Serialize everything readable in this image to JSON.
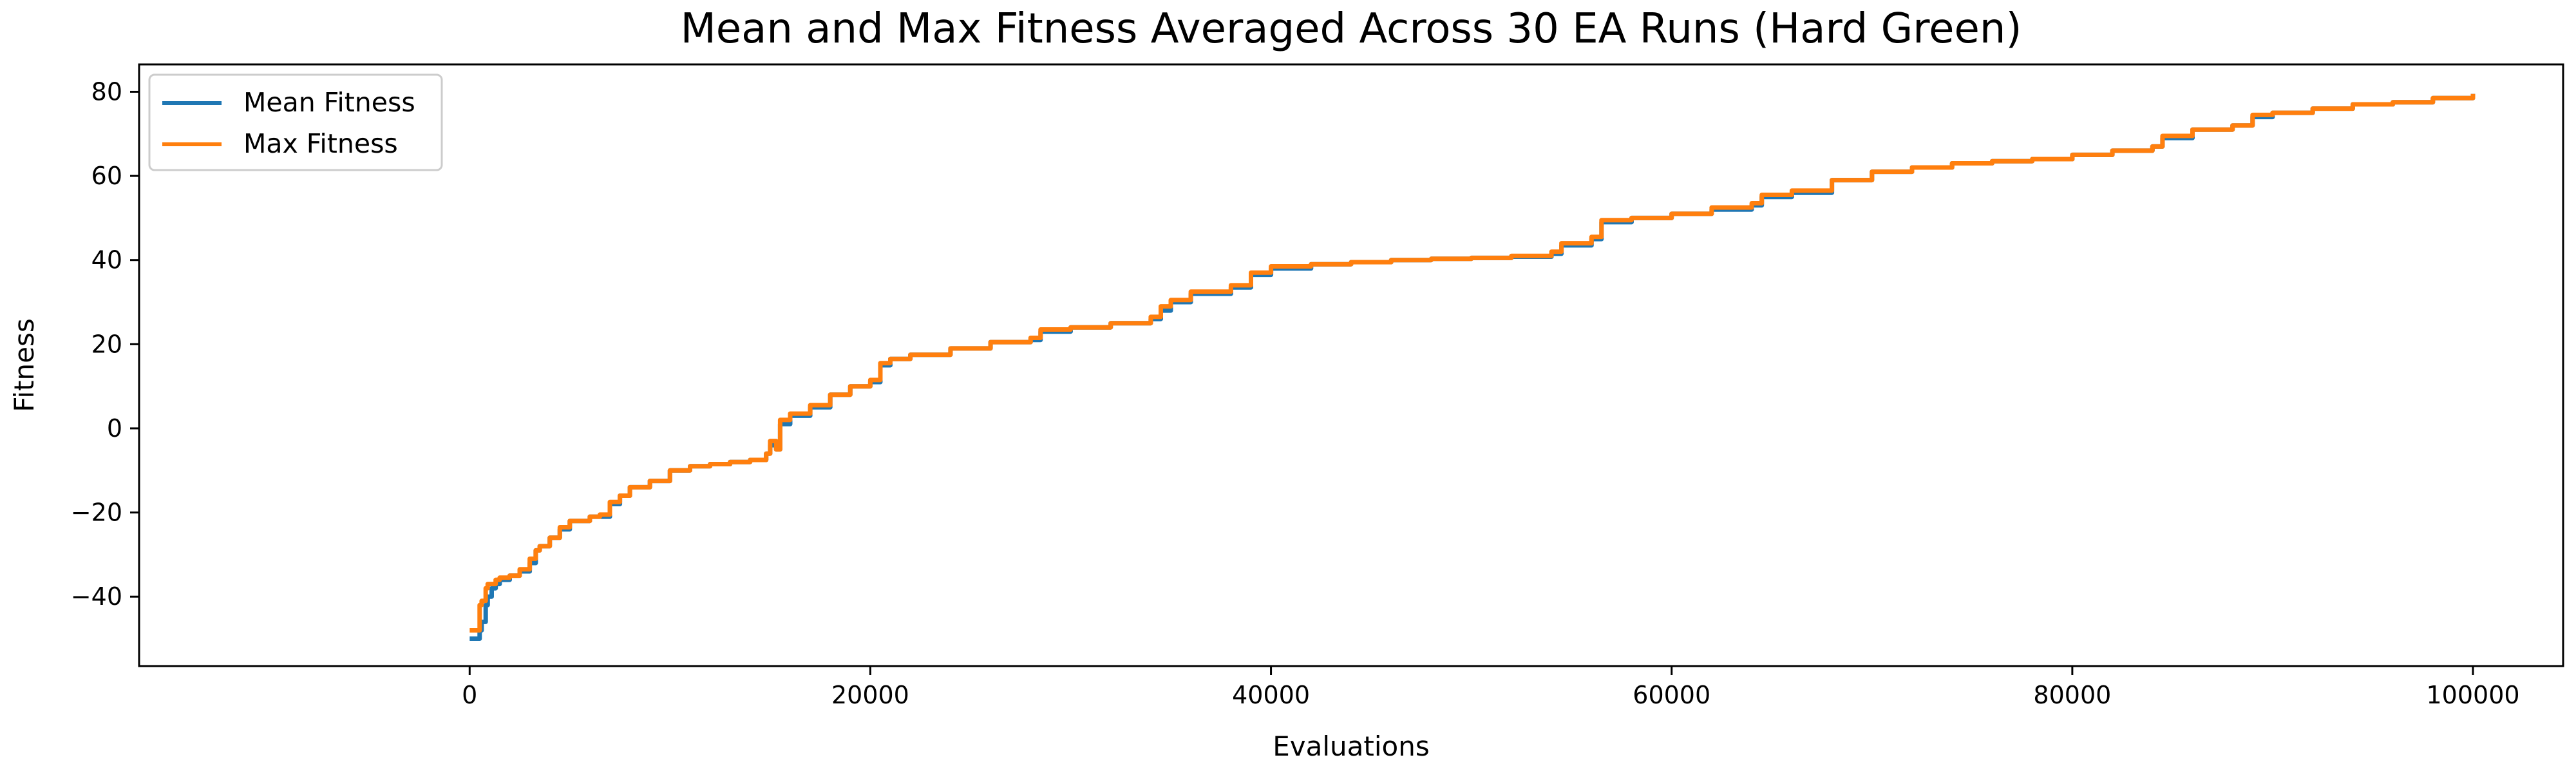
{
  "chart_data": {
    "type": "line",
    "title": "Mean and Max Fitness Averaged Across 30 EA Runs (Hard Green)",
    "xlabel": "Evaluations",
    "ylabel": "Fitness",
    "xlim": [
      -16500,
      104500
    ],
    "ylim": [
      -56.5,
      86.5
    ],
    "xticks": [
      0,
      20000,
      40000,
      60000,
      80000,
      100000
    ],
    "xtick_labels": [
      "0",
      "20000",
      "40000",
      "60000",
      "80000",
      "100000"
    ],
    "yticks": [
      -40,
      -20,
      0,
      20,
      40,
      60,
      80
    ],
    "ytick_labels": [
      "−40",
      "−20",
      "0",
      "20",
      "40",
      "60",
      "80"
    ],
    "grid": false,
    "legend_position": "upper-left",
    "series": [
      {
        "name": "Mean Fitness",
        "color": "#1f77b4",
        "x": [
          0,
          200,
          500,
          600,
          800,
          900,
          1100,
          1300,
          1500,
          2000,
          2500,
          3000,
          3300,
          3500,
          4000,
          4500,
          5000,
          6000,
          6500,
          7000,
          7500,
          8000,
          9000,
          10000,
          11000,
          12000,
          13000,
          14000,
          14800,
          15000,
          15300,
          15500,
          16000,
          17000,
          18000,
          19000,
          20000,
          20500,
          21000,
          22000,
          24000,
          26000,
          28000,
          28500,
          30000,
          32000,
          34000,
          34500,
          35000,
          36000,
          38000,
          39000,
          40000,
          42000,
          44000,
          46000,
          48000,
          50000,
          52000,
          54000,
          54500,
          56000,
          56500,
          58000,
          60000,
          62000,
          64000,
          64500,
          66000,
          68000,
          70000,
          72000,
          74000,
          76000,
          78000,
          80000,
          82000,
          84000,
          84500,
          86000,
          88000,
          89000,
          90000,
          92000,
          94000,
          96000,
          98000,
          100000
        ],
        "y": [
          -50,
          -50,
          -48,
          -46,
          -42,
          -40,
          -38,
          -37,
          -36,
          -35,
          -34,
          -32,
          -29,
          -28,
          -26,
          -24,
          -22,
          -21,
          -21,
          -18,
          -16,
          -14,
          -12.5,
          -10,
          -9,
          -8.5,
          -8,
          -7.5,
          -6,
          -4,
          -5,
          1,
          3,
          5,
          8,
          10,
          11,
          15,
          16.5,
          17.5,
          19,
          20.5,
          21,
          23,
          24,
          25,
          26,
          28,
          30,
          32,
          33.5,
          36.5,
          38,
          39,
          39.5,
          40,
          40.3,
          40.5,
          40.8,
          41.5,
          43.5,
          45,
          49,
          50,
          51,
          52,
          53,
          55,
          56,
          59,
          61,
          62,
          63,
          63.5,
          64,
          65,
          66,
          67,
          69,
          71,
          72,
          74,
          75,
          76,
          77,
          77.5,
          78.5,
          79.5
        ]
      },
      {
        "name": "Max Fitness",
        "color": "#ff7f0e",
        "x": [
          0,
          200,
          500,
          600,
          800,
          900,
          1100,
          1300,
          1500,
          2000,
          2500,
          3000,
          3300,
          3500,
          4000,
          4500,
          5000,
          6000,
          6500,
          7000,
          7500,
          8000,
          9000,
          10000,
          11000,
          12000,
          13000,
          14000,
          14800,
          15000,
          15300,
          15500,
          16000,
          17000,
          18000,
          19000,
          20000,
          20500,
          21000,
          22000,
          24000,
          26000,
          28000,
          28500,
          30000,
          32000,
          34000,
          34500,
          35000,
          36000,
          38000,
          39000,
          40000,
          42000,
          44000,
          46000,
          48000,
          50000,
          52000,
          54000,
          54500,
          56000,
          56500,
          58000,
          60000,
          62000,
          64000,
          64500,
          66000,
          68000,
          70000,
          72000,
          74000,
          76000,
          78000,
          80000,
          82000,
          84000,
          84500,
          86000,
          88000,
          89000,
          90000,
          92000,
          94000,
          96000,
          98000,
          100000
        ],
        "y": [
          -48,
          -48,
          -42,
          -41,
          -38,
          -37,
          -37,
          -36,
          -35.5,
          -35,
          -33.5,
          -31,
          -29,
          -28,
          -26,
          -23.5,
          -22,
          -21,
          -20.5,
          -17.5,
          -16,
          -14,
          -12.5,
          -10,
          -9,
          -8.5,
          -8,
          -7.5,
          -6,
          -3,
          -5,
          2,
          3.5,
          5.5,
          8,
          10,
          11.5,
          15.5,
          16.5,
          17.5,
          19,
          20.5,
          21.5,
          23.5,
          24,
          25,
          26.5,
          29,
          30.5,
          32.5,
          34,
          37,
          38.5,
          39,
          39.5,
          40,
          40.3,
          40.5,
          41,
          42,
          44,
          45.5,
          49.5,
          50,
          51,
          52.5,
          53.5,
          55.5,
          56.5,
          59,
          61,
          62,
          63,
          63.5,
          64,
          65,
          66,
          67,
          69.5,
          71,
          72,
          74.5,
          75,
          76,
          77,
          77.5,
          78.5,
          79.5
        ]
      }
    ]
  }
}
